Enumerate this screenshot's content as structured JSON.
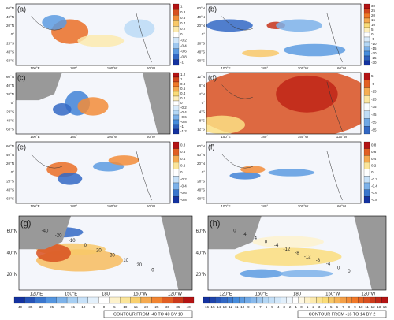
{
  "panels": [
    {
      "label": "(a)",
      "lat_labels": [
        "60°N",
        "40°N",
        "20°N",
        "0°",
        "20°S",
        "40°S",
        "60°S"
      ],
      "lon_labels": [
        "100°E",
        "180°",
        "100°W",
        "60°W"
      ],
      "colorbar": [
        1,
        0.8,
        0.6,
        0.4,
        0.2,
        0,
        -0.2,
        -0.4,
        -0.6,
        -0.8,
        -1
      ]
    },
    {
      "label": "(b)",
      "lat_labels": [
        "60°N",
        "40°N",
        "20°N",
        "0°",
        "20°S",
        "40°S",
        "60°S"
      ],
      "lon_labels": [
        "100°E",
        "180°",
        "100°W",
        "60°W"
      ],
      "colorbar": [
        30,
        25,
        20,
        15,
        10,
        5,
        0,
        -5,
        -10,
        -15,
        -20,
        -25,
        -30
      ]
    },
    {
      "label": "(c)",
      "lat_labels": [
        "60°N",
        "40°N",
        "20°N",
        "0°",
        "20°S",
        "40°S",
        "60°S"
      ],
      "lon_labels": [
        "100°E",
        "180°",
        "100°W",
        "60°W"
      ],
      "colorbar": [
        1.2,
        1,
        0.8,
        0.6,
        0.4,
        0.2,
        0,
        -0.2,
        -0.4,
        -0.6,
        -0.8,
        -1,
        -1.2
      ]
    },
    {
      "label": "(d)",
      "lat_labels": [
        "12°N",
        "8°N",
        "4°N",
        "0°",
        "4°S",
        "8°S",
        "12°S"
      ],
      "lon_labels": [
        "150°E",
        "180°",
        "150°W",
        "120°W"
      ],
      "colorbar": [
        5,
        -5,
        -15,
        -25,
        -35,
        -45,
        -55,
        -65
      ]
    },
    {
      "label": "(e)",
      "lat_labels": [
        "60°N",
        "40°N",
        "20°N",
        "0°",
        "20°S",
        "40°S",
        "60°S"
      ],
      "lon_labels": [
        "100°E",
        "180°",
        "100°W",
        "60°W"
      ],
      "colorbar": [
        0.8,
        0.6,
        0.4,
        0.2,
        0,
        -0.2,
        -0.4,
        -0.6,
        -0.8
      ]
    },
    {
      "label": "(f)",
      "lat_labels": [
        "60°N",
        "40°N",
        "20°N",
        "0°",
        "20°S",
        "40°S",
        "60°S"
      ],
      "lon_labels": [
        "100°E",
        "180°",
        "100°W",
        "60°W"
      ],
      "colorbar": [
        0.8,
        0.6,
        0.4,
        0.2,
        0,
        -0.2,
        -0.4,
        -0.6,
        -0.8
      ]
    },
    {
      "label": "(g)",
      "lat_labels": [
        "60°N",
        "40°N",
        "20°N"
      ],
      "lon_labels": [
        "120°E",
        "150°E",
        "180",
        "150°W",
        "120°W"
      ],
      "colorbar": [
        -40,
        -35,
        -30,
        -25,
        -20,
        -15,
        -10,
        -5,
        0,
        5,
        10,
        15,
        20,
        25,
        30,
        35,
        40
      ],
      "contour_labels": [
        "-40",
        "-20",
        "-10",
        "0",
        "20",
        "30",
        "10",
        "20",
        "0"
      ],
      "note": "CONTOUR FROM -40 TO 40 BY 10"
    },
    {
      "label": "(h)",
      "lat_labels": [
        "60°N",
        "40°N",
        "20°N"
      ],
      "lon_labels": [
        "120°E",
        "150°E",
        "180",
        "150°W",
        "120°W"
      ],
      "colorbar": [
        -16,
        -15,
        -14,
        -13,
        -12,
        -11,
        -10,
        -9,
        -8,
        -7,
        -6,
        -5,
        -4,
        -3,
        -2,
        -1,
        0,
        1,
        2,
        3,
        4,
        5,
        6,
        7,
        8,
        9,
        10,
        11,
        12,
        13,
        14
      ],
      "contour_labels": [
        "0",
        "4",
        "4",
        "0",
        "-4",
        "-12",
        "-8",
        "-12",
        "-8",
        "-4",
        "0",
        "0"
      ],
      "note": "CONTOUR FROM -16 TO 14 BY 2"
    }
  ]
}
